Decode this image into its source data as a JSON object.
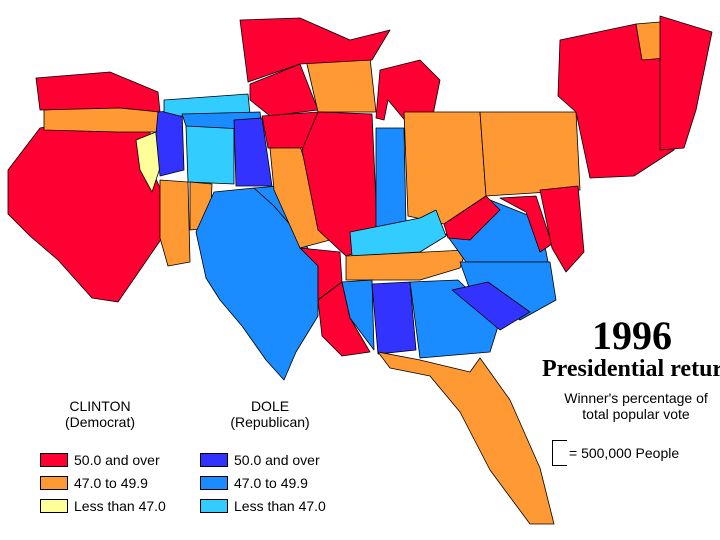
{
  "title": {
    "year": "1996",
    "subtitle": "Presidential returns",
    "note": "Winner's percentage of total popular vote"
  },
  "scale": {
    "label": "= 500,000 People"
  },
  "legend": {
    "clinton": {
      "title": "CLINTON",
      "party": "(Democrat)",
      "items": [
        {
          "label": "50.0  and  over",
          "color": "#ff0033"
        },
        {
          "label": "47.0  to  49.9",
          "color": "#ff9933"
        },
        {
          "label": "Less  than  47.0",
          "color": "#ffff99"
        }
      ]
    },
    "dole": {
      "title": "DOLE",
      "party": "(Republican)",
      "items": [
        {
          "label": "50.0  and  over",
          "color": "#3333ff"
        },
        {
          "label": "47.0  to  49.9",
          "color": "#1a8cff"
        },
        {
          "label": "Less  than  47.0",
          "color": "#33ccff"
        }
      ]
    }
  },
  "colors": {
    "clinton_50_over": "#ff0033",
    "clinton_47_49": "#ff9933",
    "clinton_under_47": "#ffff99",
    "dole_50_over": "#3333ff",
    "dole_47_49": "#1a8cff",
    "dole_under_47": "#33ccff"
  }
}
